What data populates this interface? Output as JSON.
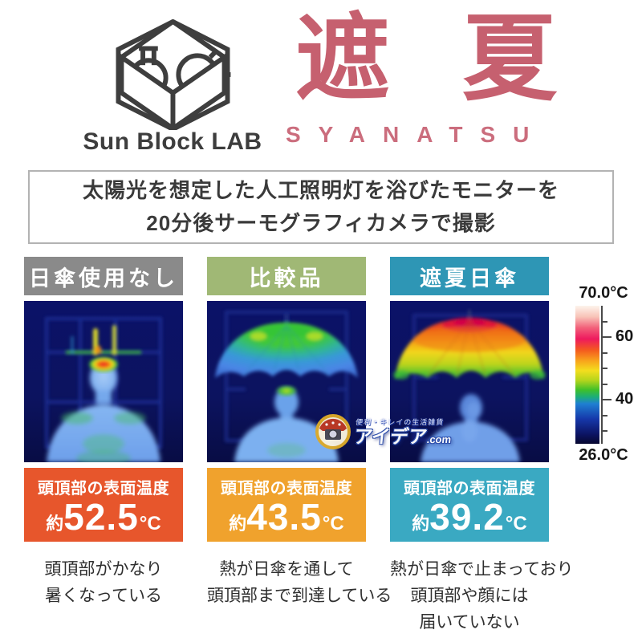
{
  "brand": {
    "name": "Sun Block LAB",
    "title_kanji": "遮夏",
    "title_roman": "SYANATSU",
    "accent_pink": "#c6606f"
  },
  "intro": {
    "line1": "太陽光を想定した人工照明灯を浴びたモニターを",
    "line2": "20分後サーモグラフィカメラで撮影"
  },
  "columns": [
    {
      "header": "日傘使用なし",
      "header_color": "#8a8a8a",
      "temp_label": "頭頂部の表面温度",
      "temp_prefix": "約",
      "temp_value": "52.5",
      "temp_unit": "°C",
      "box_color": "#e7562c",
      "desc_lines": [
        "頭頂部がかなり",
        "暑くなっている"
      ]
    },
    {
      "header": "比較品",
      "header_color": "#a0b875",
      "temp_label": "頭頂部の表面温度",
      "temp_prefix": "約",
      "temp_value": "43.5",
      "temp_unit": "°C",
      "box_color": "#f0a22d",
      "desc_lines": [
        "熱が日傘を通して",
        "頭頂部まで到達している"
      ]
    },
    {
      "header": "遮夏日傘",
      "header_color": "#2e96b5",
      "temp_label": "頭頂部の表面温度",
      "temp_prefix": "約",
      "temp_value": "39.2",
      "temp_unit": "°C",
      "box_color": "#3aa9c2",
      "desc_lines": [
        "熱が日傘で止まっており",
        "頭頂部や顔には",
        "届いていない"
      ]
    }
  ],
  "scale": {
    "top_label": "70.0°C",
    "bottom_label": "26.0°C",
    "ticks": [
      {
        "pos": 11.4,
        "label": ""
      },
      {
        "pos": 22.7,
        "label": "60"
      },
      {
        "pos": 34.1,
        "label": ""
      },
      {
        "pos": 45.5,
        "label": ""
      },
      {
        "pos": 56.8,
        "label": ""
      },
      {
        "pos": 68.2,
        "label": "40"
      },
      {
        "pos": 79.5,
        "label": ""
      },
      {
        "pos": 90.9,
        "label": ""
      }
    ]
  },
  "watermark": {
    "tagline": "便利・キレイの生活雑貨",
    "site": "アイデア",
    "domain": ".com"
  }
}
